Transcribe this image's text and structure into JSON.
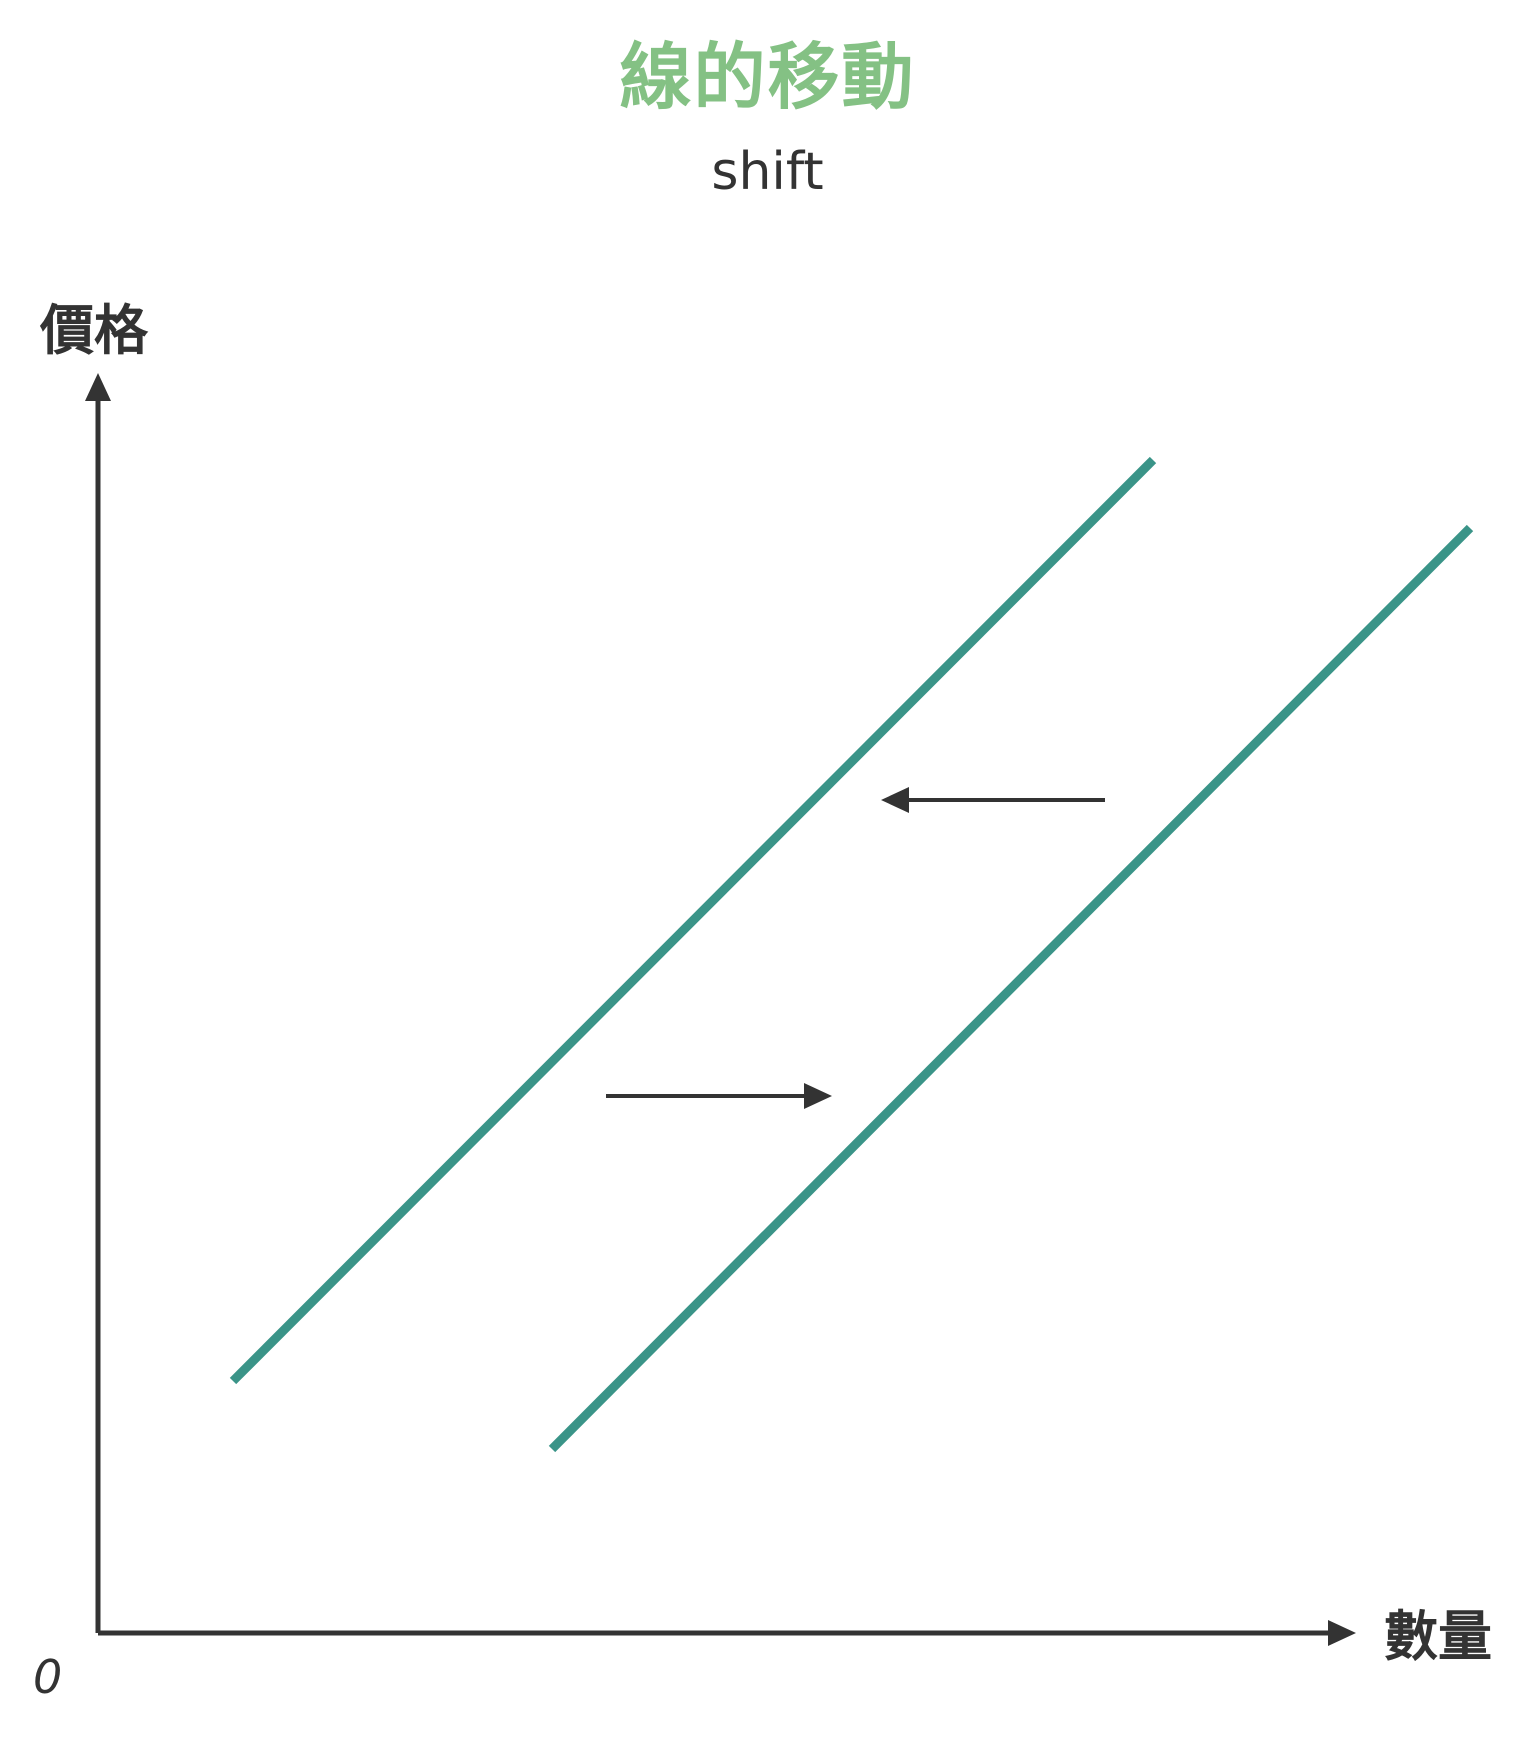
{
  "title": "線的移動",
  "subtitle": "shift",
  "axes": {
    "y_label": "價格",
    "x_label": "數量",
    "origin": "0"
  },
  "colors": {
    "title": "#84c184",
    "curve": "#3a9488",
    "axis": "#333333",
    "text": "#333333"
  }
}
